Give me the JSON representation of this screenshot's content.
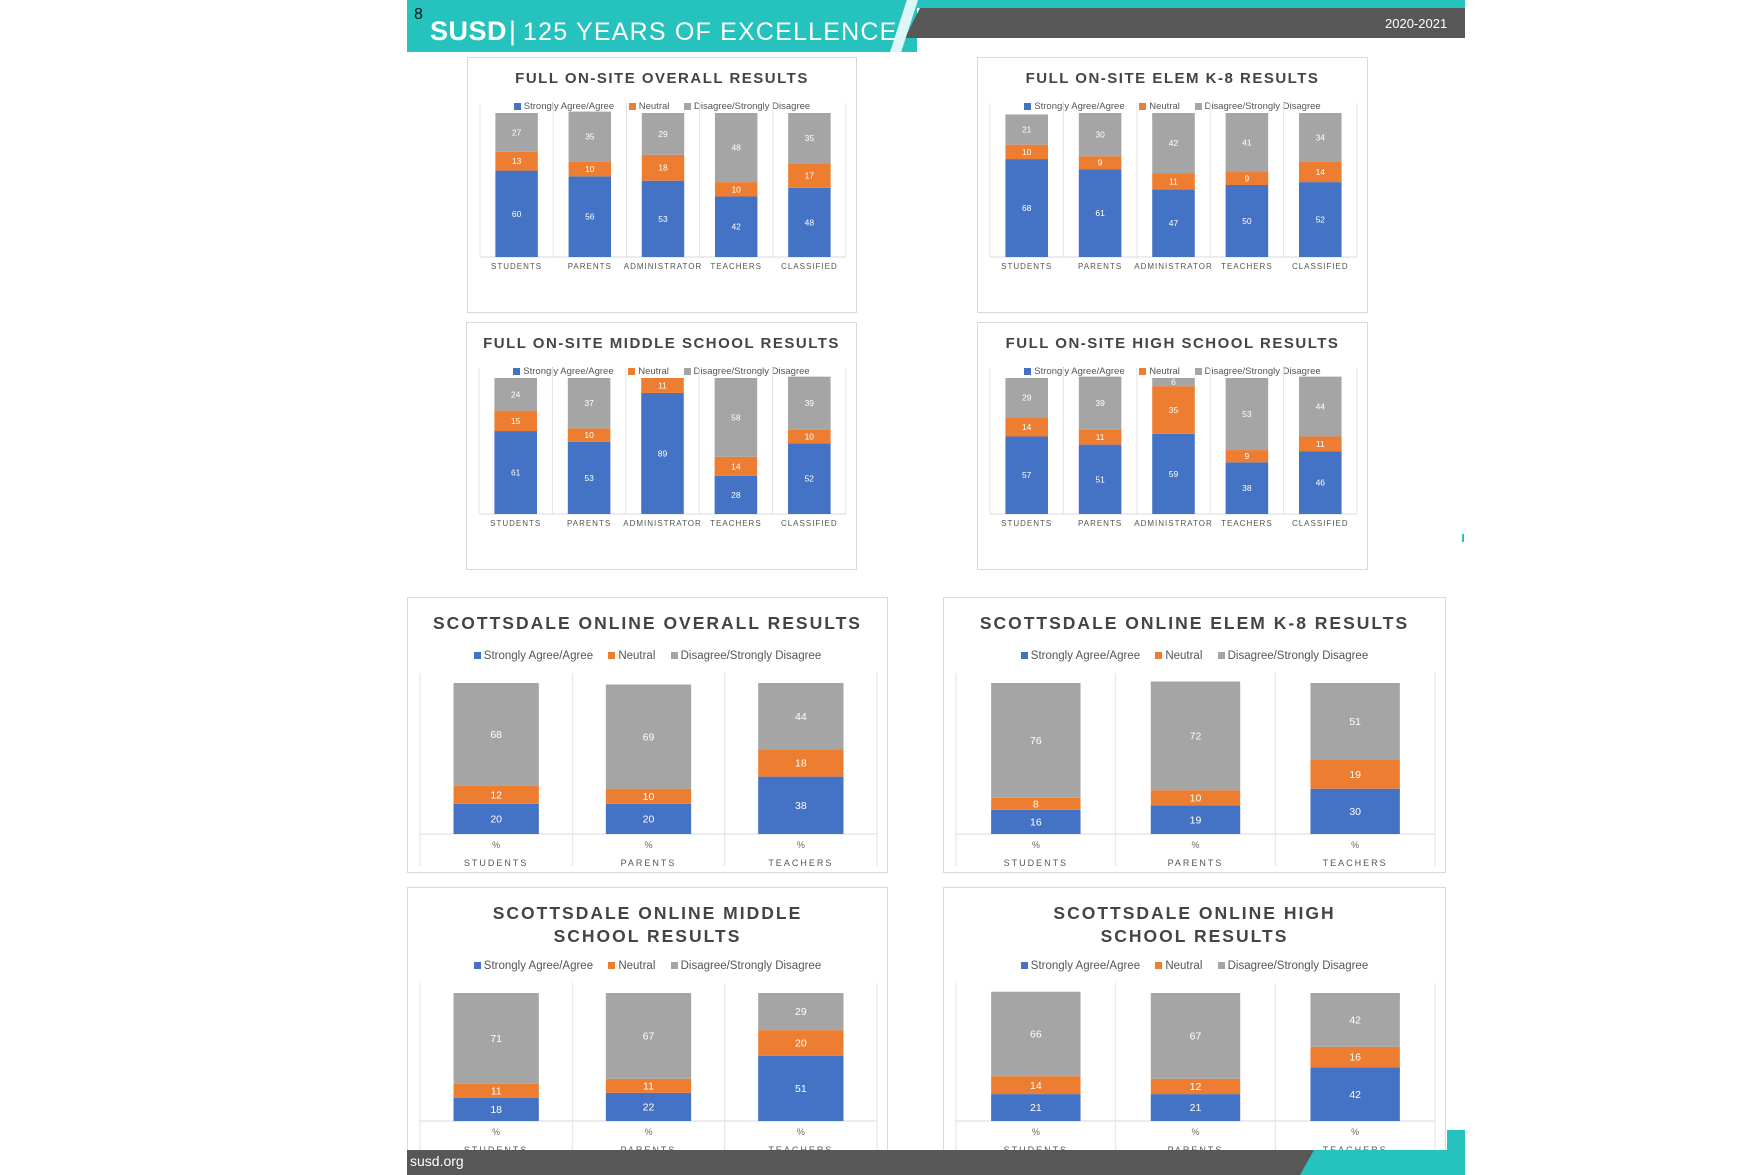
{
  "header": {
    "page_number": "8",
    "brand": "SUSD",
    "separator": "|",
    "tagline": "125 YEARS OF EXCELLENCE",
    "school_year": "2020-2021"
  },
  "footer": {
    "website": "susd.org"
  },
  "colors": {
    "agree": "#4472c4",
    "neutral": "#ed7d31",
    "disagree": "#a5a5a5",
    "teal": "#26c2bd",
    "band_gray": "#575757"
  },
  "legend": {
    "agree": "Strongly Agree/Agree",
    "neutral": "Neutral",
    "disagree": "Disagree/Strongly Disagree"
  },
  "chart_data": [
    {
      "type": "bar",
      "stacked": true,
      "title": "FULL ON-SITE OVERALL RESULTS",
      "categories": [
        "STUDENTS",
        "PARENTS",
        "ADMINISTRATOR",
        "TEACHERS",
        "CLASSIFIED"
      ],
      "category_prefix": "",
      "series": [
        {
          "name": "Strongly Agree/Agree",
          "values": [
            60,
            56,
            53,
            42,
            48
          ]
        },
        {
          "name": "Neutral",
          "values": [
            13,
            10,
            18,
            10,
            17
          ]
        },
        {
          "name": "Disagree/Strongly Disagree",
          "values": [
            27,
            35,
            29,
            48,
            35
          ]
        }
      ],
      "ylim": [
        0,
        100
      ],
      "legend": "top",
      "grid": false
    },
    {
      "type": "bar",
      "stacked": true,
      "title": "FULL ON-SITE ELEM K-8 RESULTS",
      "categories": [
        "STUDENTS",
        "PARENTS",
        "ADMINISTRATOR",
        "TEACHERS",
        "CLASSIFIED"
      ],
      "category_prefix": "",
      "series": [
        {
          "name": "Strongly Agree/Agree",
          "values": [
            68,
            61,
            47,
            50,
            52
          ]
        },
        {
          "name": "Neutral",
          "values": [
            10,
            9,
            11,
            9,
            14
          ]
        },
        {
          "name": "Disagree/Strongly Disagree",
          "values": [
            21,
            30,
            42,
            41,
            34
          ]
        }
      ],
      "ylim": [
        0,
        100
      ],
      "legend": "top",
      "grid": false
    },
    {
      "type": "bar",
      "stacked": true,
      "title": "FULL ON-SITE MIDDLE SCHOOL RESULTS",
      "categories": [
        "STUDENTS",
        "PARENTS",
        "ADMINISTRATOR",
        "TEACHERS",
        "CLASSIFIED"
      ],
      "category_prefix": "",
      "series": [
        {
          "name": "Strongly Agree/Agree",
          "values": [
            61,
            53,
            89,
            28,
            52
          ]
        },
        {
          "name": "Neutral",
          "values": [
            15,
            10,
            11,
            14,
            10
          ]
        },
        {
          "name": "Disagree/Strongly Disagree",
          "values": [
            24,
            37,
            0,
            58,
            39
          ]
        }
      ],
      "ylim": [
        0,
        100
      ],
      "legend": "top",
      "grid": false
    },
    {
      "type": "bar",
      "stacked": true,
      "title": "FULL ON-SITE HIGH SCHOOL RESULTS",
      "categories": [
        "STUDENTS",
        "PARENTS",
        "ADMINISTRATOR",
        "TEACHERS",
        "CLASSIFIED"
      ],
      "category_prefix": "",
      "series": [
        {
          "name": "Strongly Agree/Agree",
          "values": [
            57,
            51,
            59,
            38,
            46
          ]
        },
        {
          "name": "Neutral",
          "values": [
            14,
            11,
            35,
            9,
            11
          ]
        },
        {
          "name": "Disagree/Strongly Disagree",
          "values": [
            29,
            39,
            6,
            53,
            44
          ]
        }
      ],
      "ylim": [
        0,
        100
      ],
      "legend": "top",
      "grid": false
    },
    {
      "type": "bar",
      "stacked": true,
      "title": "SCOTTSDALE ONLINE OVERALL RESULTS",
      "categories": [
        "STUDENTS",
        "PARENTS",
        "TEACHERS"
      ],
      "category_prefix": "%",
      "series": [
        {
          "name": "Strongly Agree/Agree",
          "values": [
            20,
            20,
            38
          ]
        },
        {
          "name": "Neutral",
          "values": [
            12,
            10,
            18
          ]
        },
        {
          "name": "Disagree/Strongly Disagree",
          "values": [
            68,
            69,
            44
          ]
        }
      ],
      "ylim": [
        0,
        100
      ],
      "legend": "top",
      "grid": false
    },
    {
      "type": "bar",
      "stacked": true,
      "title": "SCOTTSDALE ONLINE ELEM K-8 RESULTS",
      "categories": [
        "STUDENTS",
        "PARENTS",
        "TEACHERS"
      ],
      "category_prefix": "%",
      "series": [
        {
          "name": "Strongly Agree/Agree",
          "values": [
            16,
            19,
            30
          ]
        },
        {
          "name": "Neutral",
          "values": [
            8,
            10,
            19
          ]
        },
        {
          "name": "Disagree/Strongly Disagree",
          "values": [
            76,
            72,
            51
          ]
        }
      ],
      "ylim": [
        0,
        100
      ],
      "legend": "top",
      "grid": false
    },
    {
      "type": "bar",
      "stacked": true,
      "title": "SCOTTSDALE ONLINE MIDDLE SCHOOL RESULTS",
      "categories": [
        "STUDENTS",
        "PARENTS",
        "TEACHERS"
      ],
      "category_prefix": "%",
      "series": [
        {
          "name": "Strongly Agree/Agree",
          "values": [
            18,
            22,
            51
          ]
        },
        {
          "name": "Neutral",
          "values": [
            11,
            11,
            20
          ]
        },
        {
          "name": "Disagree/Strongly Disagree",
          "values": [
            71,
            67,
            29
          ]
        }
      ],
      "ylim": [
        0,
        100
      ],
      "legend": "top",
      "grid": false
    },
    {
      "type": "bar",
      "stacked": true,
      "title": "SCOTTSDALE ONLINE HIGH SCHOOL RESULTS",
      "categories": [
        "STUDENTS",
        "PARENTS",
        "TEACHERS"
      ],
      "category_prefix": "%",
      "series": [
        {
          "name": "Strongly Agree/Agree",
          "values": [
            21,
            21,
            42
          ]
        },
        {
          "name": "Neutral",
          "values": [
            14,
            12,
            16
          ]
        },
        {
          "name": "Disagree/Strongly Disagree",
          "values": [
            66,
            67,
            42
          ]
        }
      ],
      "ylim": [
        0,
        100
      ],
      "legend": "top",
      "grid": false
    }
  ]
}
